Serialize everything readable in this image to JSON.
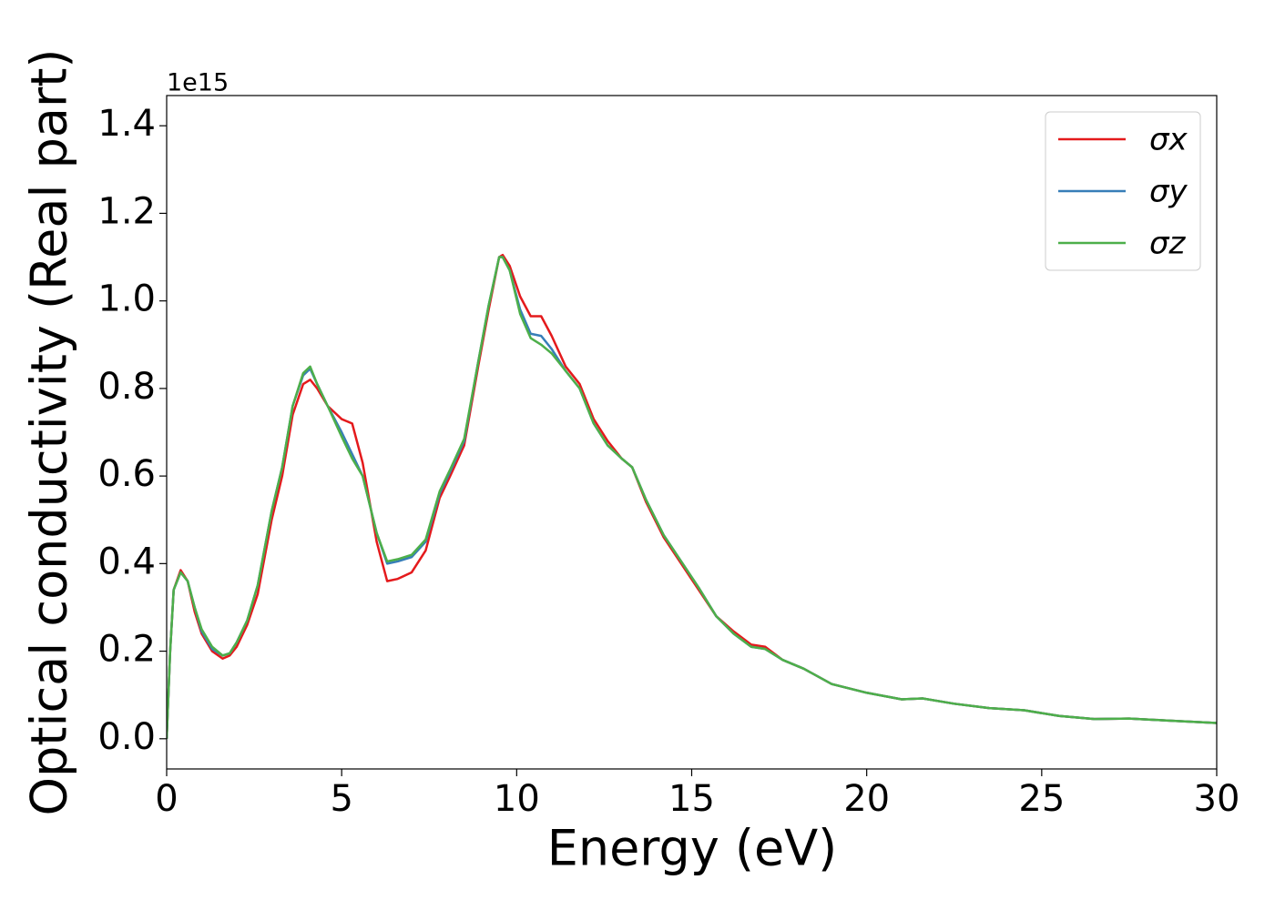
{
  "chart_data": {
    "type": "line",
    "xlabel": "Energy (eV)",
    "ylabel": "Optical conductivity (Real part)",
    "y_offset_text": "1e15",
    "x": [
      0,
      0.1,
      0.2,
      0.4,
      0.6,
      0.8,
      1.0,
      1.3,
      1.6,
      1.8,
      2.0,
      2.3,
      2.6,
      3.0,
      3.3,
      3.6,
      3.9,
      4.1,
      4.3,
      4.6,
      5.0,
      5.3,
      5.6,
      6.0,
      6.3,
      6.6,
      7.0,
      7.4,
      7.8,
      8.1,
      8.5,
      8.9,
      9.2,
      9.5,
      9.6,
      9.8,
      10.1,
      10.4,
      10.7,
      11.0,
      11.4,
      11.8,
      12.2,
      12.6,
      13.0,
      13.3,
      13.7,
      14.2,
      14.7,
      15.2,
      15.7,
      16.2,
      16.7,
      17.1,
      17.6,
      18.2,
      19.0,
      20.0,
      21.0,
      21.6,
      22.5,
      23.5,
      24.5,
      25.5,
      26.5,
      27.5,
      28.5,
      30.0
    ],
    "series": [
      {
        "name": "σx",
        "color": "#e41a1c",
        "values": [
          0,
          0.2,
          0.34,
          0.385,
          0.36,
          0.29,
          0.24,
          0.2,
          0.183,
          0.19,
          0.21,
          0.26,
          0.33,
          0.5,
          0.6,
          0.74,
          0.81,
          0.82,
          0.8,
          0.76,
          0.73,
          0.72,
          0.63,
          0.45,
          0.36,
          0.365,
          0.38,
          0.43,
          0.55,
          0.6,
          0.67,
          0.85,
          0.98,
          1.1,
          1.105,
          1.08,
          1.01,
          0.965,
          0.965,
          0.92,
          0.85,
          0.81,
          0.73,
          0.68,
          0.64,
          0.62,
          0.54,
          0.46,
          0.4,
          0.34,
          0.28,
          0.245,
          0.215,
          0.21,
          0.18,
          0.16,
          0.125,
          0.105,
          0.09,
          0.092,
          0.08,
          0.07,
          0.065,
          0.052,
          0.045,
          0.046,
          0.042,
          0.036
        ]
      },
      {
        "name": "σy",
        "color": "#377eb8",
        "values": [
          0,
          0.2,
          0.34,
          0.38,
          0.36,
          0.3,
          0.245,
          0.205,
          0.19,
          0.195,
          0.22,
          0.27,
          0.35,
          0.52,
          0.62,
          0.76,
          0.83,
          0.845,
          0.81,
          0.76,
          0.7,
          0.65,
          0.6,
          0.47,
          0.4,
          0.405,
          0.415,
          0.45,
          0.56,
          0.61,
          0.68,
          0.86,
          0.99,
          1.1,
          1.1,
          1.07,
          0.98,
          0.925,
          0.92,
          0.89,
          0.84,
          0.8,
          0.72,
          0.67,
          0.64,
          0.62,
          0.545,
          0.465,
          0.405,
          0.345,
          0.28,
          0.24,
          0.21,
          0.205,
          0.18,
          0.16,
          0.125,
          0.105,
          0.09,
          0.092,
          0.08,
          0.07,
          0.065,
          0.052,
          0.045,
          0.046,
          0.042,
          0.036
        ]
      },
      {
        "name": "σz",
        "color": "#4daf4a",
        "values": [
          0,
          0.2,
          0.34,
          0.38,
          0.36,
          0.3,
          0.25,
          0.21,
          0.19,
          0.195,
          0.22,
          0.27,
          0.35,
          0.52,
          0.62,
          0.76,
          0.835,
          0.85,
          0.81,
          0.76,
          0.69,
          0.64,
          0.6,
          0.47,
          0.405,
          0.41,
          0.42,
          0.455,
          0.565,
          0.615,
          0.685,
          0.86,
          0.99,
          1.1,
          1.1,
          1.07,
          0.97,
          0.915,
          0.9,
          0.88,
          0.84,
          0.8,
          0.72,
          0.67,
          0.64,
          0.62,
          0.545,
          0.465,
          0.405,
          0.345,
          0.28,
          0.24,
          0.21,
          0.205,
          0.18,
          0.16,
          0.125,
          0.105,
          0.09,
          0.092,
          0.08,
          0.07,
          0.065,
          0.052,
          0.045,
          0.046,
          0.042,
          0.036
        ]
      }
    ],
    "xlim": [
      0,
      30
    ],
    "xticks": [
      0,
      5,
      10,
      15,
      20,
      25,
      30
    ],
    "ylim": [
      -0.069,
      1.469
    ],
    "yticks": [
      {
        "value": 0,
        "label": "0.0"
      },
      0.2,
      0.4,
      0.6,
      0.8,
      {
        "value": 1,
        "label": "1.0"
      },
      1.2,
      1.4
    ],
    "grid": false,
    "legend": "upper right"
  }
}
